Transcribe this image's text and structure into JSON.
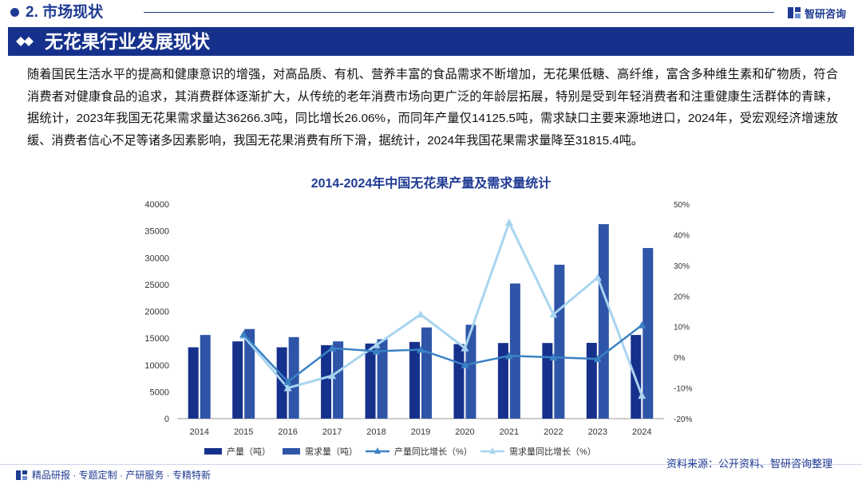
{
  "header": {
    "section_label": "2. 市场现状",
    "logo_text": "智研咨询"
  },
  "title": "无花果行业发展现状",
  "paragraph": "随着国民生活水平的提高和健康意识的增强，对高品质、有机、营养丰富的食品需求不断增加，无花果低糖、高纤维，富含多种维生素和矿物质，符合消费者对健康食品的追求，其消费群体逐渐扩大，从传统的老年消费市场向更广泛的年龄层拓展，特别是受到年轻消费者和注重健康生活群体的青睐，据统计，2023年我国无花果需求量达36266.3吨，同比增长26.06%，而同年产量仅14125.5吨，需求缺口主要来源地进口，2024年，受宏观经济增速放缓、消费者信心不足等诸多因素影响，我国无花果消费有所下滑，据统计，2024年我国花果需求量降至31815.4吨。",
  "colors": {
    "brand": "#1f3a93",
    "production": "#16318c",
    "demand": "#2f55a8",
    "production_growth": "#3b82c4",
    "demand_growth": "#a8d4f0"
  },
  "chart_data": {
    "type": "bar",
    "title": "2014-2024年中国无花果产量及需求量统计",
    "categories": [
      "2014",
      "2015",
      "2016",
      "2017",
      "2018",
      "2019",
      "2020",
      "2021",
      "2022",
      "2023",
      "2024"
    ],
    "y_left": {
      "min": 0,
      "max": 40000,
      "ticks": [
        "0",
        "5000",
        "10000",
        "15000",
        "20000",
        "25000",
        "30000",
        "35000",
        "40000"
      ]
    },
    "y_right": {
      "min": -20,
      "max": 50,
      "ticks": [
        "-20%",
        "-10%",
        "0%",
        "10%",
        "20%",
        "30%",
        "40%",
        "50%"
      ]
    },
    "series": [
      {
        "name": "产量（吨）",
        "type": "bar",
        "axis": "left",
        "values": [
          13300,
          14400,
          13300,
          13700,
          14000,
          14300,
          13900,
          14100,
          14100,
          14125.5,
          15600
        ]
      },
      {
        "name": "需求量（吨）",
        "type": "bar",
        "axis": "left",
        "values": [
          15600,
          16700,
          15200,
          14400,
          14800,
          17000,
          17500,
          25200,
          28700,
          36266.3,
          31815.4
        ]
      },
      {
        "name": "产量同比增长（%）",
        "type": "line",
        "axis": "right",
        "values": [
          null,
          7.5,
          -8,
          3,
          2,
          2.5,
          -2.5,
          0.5,
          0,
          -0.5,
          10.5
        ]
      },
      {
        "name": "需求量同比增长（%）",
        "type": "line",
        "axis": "right",
        "values": [
          null,
          7,
          -10,
          -6,
          4,
          14,
          3,
          44,
          14,
          26.06,
          -12.5
        ]
      }
    ]
  },
  "footer": {
    "left": "精品研报 · 专题定制 · 产研服务 · 专精特新",
    "source": "资料来源：公开资料、智研咨询整理"
  }
}
